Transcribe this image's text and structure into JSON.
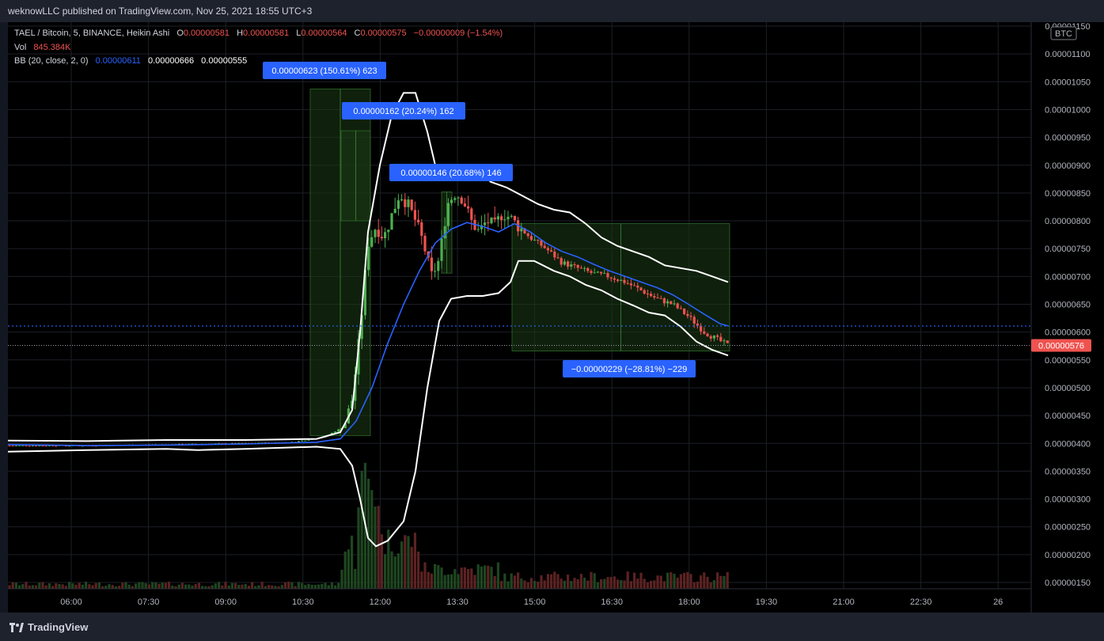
{
  "header": {
    "publisher": "weknowLLC published on TradingView.com, Nov 25, 2021 18:55 UTC+3"
  },
  "footer": {
    "brand": "TradingView"
  },
  "legend": {
    "symbol": "TAEL / Bitcoin, 5, BINANCE, Heikin Ashi",
    "o_label": "O",
    "o_value": "0.00000581",
    "h_label": "H",
    "h_value": "0.00000581",
    "l_label": "L",
    "l_value": "0.00000564",
    "c_label": "C",
    "c_value": "0.00000575",
    "change": "−0.00000009 (−1.54%)",
    "vol_label": "Vol",
    "vol_value": "845.384K",
    "bb_label": "BB (20, close, 2, 0)",
    "bb_basis": "0.00000611",
    "bb_upper": "0.00000666",
    "bb_lower": "0.00000555"
  },
  "colors": {
    "background": "#000000",
    "up": "#4caf50",
    "down": "#ef5350",
    "basis": "#2962ff",
    "bands": "#ffffff",
    "label_bg": "#2962ff",
    "range_fill": "#1b3a16"
  },
  "chart_data": {
    "type": "candlestick",
    "currency_badge": "BTC",
    "y_ticks": [
      "0.00001150",
      "0.00001100",
      "0.00001050",
      "0.00001000",
      "0.00000950",
      "0.00000900",
      "0.00000850",
      "0.00000800",
      "0.00000750",
      "0.00000700",
      "0.00000650",
      "0.00000600",
      "0.00000550",
      "0.00000500",
      "0.00000450",
      "0.00000400",
      "0.00000350",
      "0.00000300",
      "0.00000250",
      "0.00000200",
      "0.00000150"
    ],
    "y_tick_values": [
      1150,
      1100,
      1050,
      1000,
      950,
      900,
      850,
      800,
      750,
      700,
      650,
      600,
      550,
      500,
      450,
      400,
      350,
      300,
      250,
      200,
      150
    ],
    "y_unit_note": "values are in units of 1e-8 BTC",
    "x_ticks": [
      "06:00",
      "07:30",
      "09:00",
      "10:30",
      "12:00",
      "13:30",
      "15:00",
      "16:30",
      "18:00",
      "19:30",
      "21:00",
      "22:30",
      "26"
    ],
    "last_price_label": "0.00000576",
    "last_price": 576,
    "basis_line_value": 611,
    "measurements": [
      {
        "label": "0.00000623 (150.61%) 623",
        "from": 414,
        "to": 1037
      },
      {
        "label": "0.00000162 (20.24%) 162",
        "from": 800,
        "to": 962
      },
      {
        "label": "0.00000146 (20.68%) 146",
        "from": 706,
        "to": 852
      },
      {
        "label": "−0.00000229 (−28.81%) −229",
        "from": 795,
        "to": 566
      }
    ]
  }
}
